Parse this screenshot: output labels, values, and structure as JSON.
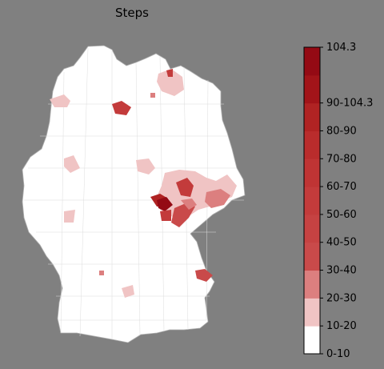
{
  "title": "Steps",
  "colorbar": {
    "max_label": "104.3",
    "bins": [
      {
        "label": "0-10",
        "color": "#ffffff"
      },
      {
        "label": "10-20",
        "color": "#f0c4c4"
      },
      {
        "label": "20-30",
        "color": "#dc7f7f"
      },
      {
        "label": "30-40",
        "color": "#c94a4a"
      },
      {
        "label": "40-50",
        "color": "#c64242"
      },
      {
        "label": "50-60",
        "color": "#c33b3b"
      },
      {
        "label": "60-70",
        "color": "#bf3434"
      },
      {
        "label": "70-80",
        "color": "#b92c2c"
      },
      {
        "label": "80-90",
        "color": "#b02323"
      },
      {
        "label": "90-104.3",
        "color": "#a21419"
      },
      {
        "label": "",
        "color": "#940a14"
      }
    ]
  },
  "map": {
    "region": "Germany districts",
    "base_color": "#ffffff",
    "border_color": "#c8c8c8"
  }
}
